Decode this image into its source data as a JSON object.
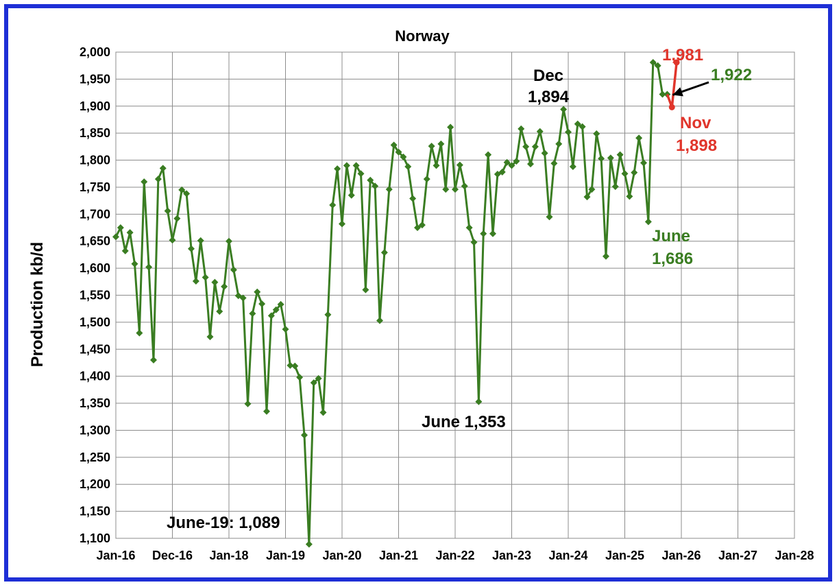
{
  "chart_data": {
    "type": "line",
    "title": "Norway",
    "xlabel": "",
    "ylabel": "Production kb/d",
    "ylim": [
      1100,
      2000
    ],
    "ytick_step": 50,
    "xlim": [
      "2016-01",
      "2028-01"
    ],
    "x_tick_labels": [
      "Jan-16",
      "Dec-16",
      "Jan-18",
      "Jan-19",
      "Jan-20",
      "Jan-21",
      "Jan-22",
      "Jan-23",
      "Jan-24",
      "Jan-25",
      "Jan-26",
      "Jan-27",
      "Jan-28"
    ],
    "grid": true,
    "series": [
      {
        "color": "#3a7d22",
        "marker": "diamond",
        "start": "2016-01",
        "values": [
          1658,
          1675,
          1632,
          1666,
          1608,
          1480,
          1760,
          1602,
          1430,
          1765,
          1785,
          1706,
          1652,
          1692,
          1745,
          1738,
          1636,
          1576,
          1651,
          1583,
          1473,
          1574,
          1520,
          1566,
          1650,
          1597,
          1549,
          1545,
          1349,
          1516,
          1556,
          1534,
          1335,
          1512,
          1523,
          1533,
          1487,
          1420,
          1419,
          1398,
          1291,
          1089,
          1388,
          1396,
          1333,
          1514,
          1717,
          1784,
          1682,
          1790,
          1735,
          1790,
          1775,
          1560,
          1763,
          1752,
          1503,
          1629,
          1746,
          1828,
          1815,
          1806,
          1788,
          1729,
          1675,
          1680,
          1765,
          1826,
          1790,
          1830,
          1746,
          1861,
          1746,
          1791,
          1752,
          1675,
          1648,
          1353,
          1664,
          1810,
          1664,
          1774,
          1778,
          1796,
          1790,
          1798,
          1858,
          1825,
          1793,
          1825,
          1853,
          1813,
          1695,
          1794,
          1830,
          1894,
          1852,
          1788,
          1867,
          1862,
          1732,
          1746,
          1849,
          1803,
          1622,
          1804,
          1751,
          1810,
          1775,
          1733,
          1777,
          1841,
          1795,
          1686,
          1981,
          1975,
          1922,
          1922
        ]
      },
      {
        "color": "#e0352b",
        "marker": "circle",
        "points": [
          [
            "2025-10",
            1922
          ],
          [
            "2025-11",
            1898
          ],
          [
            "2025-12",
            1981
          ]
        ]
      }
    ],
    "annotations": [
      {
        "text": "Dec",
        "color": "#000000"
      },
      {
        "text": "1,894",
        "color": "#000000"
      },
      {
        "text": "June 1,353",
        "color": "#000000"
      },
      {
        "text": "June-19: 1,089",
        "color": "#000000"
      },
      {
        "text": "June",
        "color": "#3a7d22"
      },
      {
        "text": "1,686",
        "color": "#3a7d22"
      },
      {
        "text": "1,981",
        "color": "#e0352b"
      },
      {
        "text": "Nov",
        "color": "#e0352b"
      },
      {
        "text": "1,898",
        "color": "#e0352b"
      },
      {
        "text": "1,922",
        "color": "#3a7d22"
      }
    ]
  }
}
